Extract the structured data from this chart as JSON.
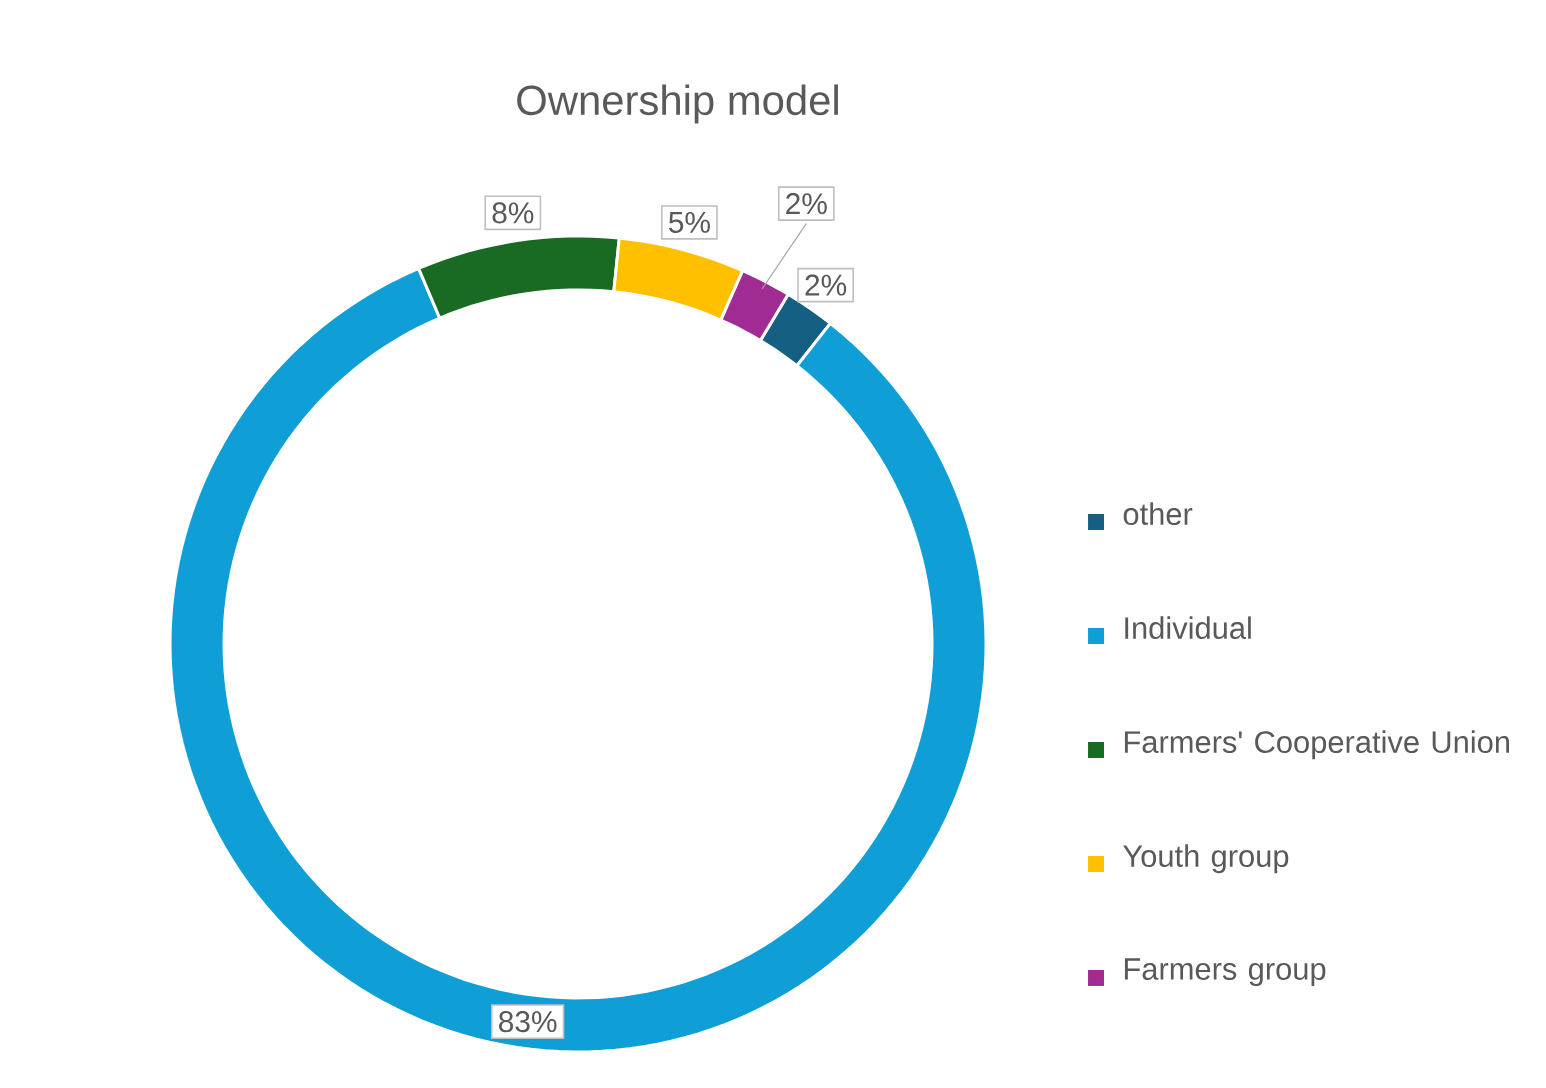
{
  "chart_data": {
    "type": "donut",
    "title": "Ownership model",
    "categories": [
      "other",
      "Individual",
      "Farmers' Cooperative Union",
      "Youth group",
      "Farmers group"
    ],
    "values": [
      2,
      83,
      8,
      5,
      2
    ],
    "colors": [
      "#156082",
      "#0f9ed5",
      "#196b24",
      "#ffc000",
      "#a02b93"
    ],
    "value_labels": [
      "2%",
      "83%",
      "8%",
      "5%",
      "2%"
    ],
    "legend": "right"
  }
}
